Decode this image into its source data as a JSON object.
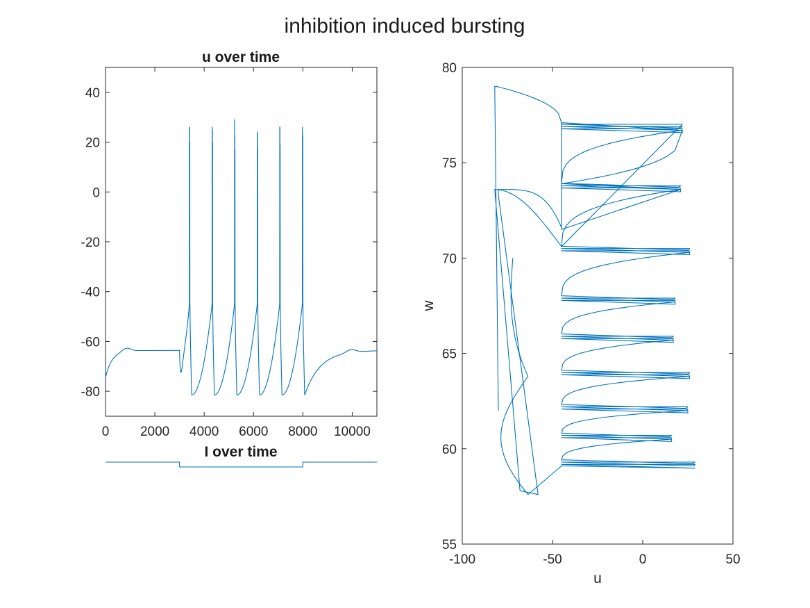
{
  "figure": {
    "title": "inhibition induced bursting",
    "line_color": "#0072BD"
  },
  "chart_data": [
    {
      "id": "u_time",
      "type": "line",
      "title": "u over time",
      "xlabel": "",
      "ylabel": "",
      "xlim": [
        0,
        11000
      ],
      "ylim": [
        -90,
        50
      ],
      "xticks": [
        0,
        2000,
        4000,
        6000,
        8000,
        10000
      ],
      "yticks": [
        -80,
        -60,
        -40,
        -20,
        0,
        20,
        40
      ],
      "grid": false,
      "resting_potential": -63.6,
      "initial_potential": -74.5,
      "stimulus_start": 3000,
      "stimulus_end": 8000,
      "spike_reset": -45,
      "after_spike_minimum": -81.5,
      "bursts": [
        {
          "t": 3400,
          "peaks": [
            26,
            26,
            20
          ]
        },
        {
          "t": 4320,
          "peaks": [
            26,
            25,
            20
          ]
        },
        {
          "t": 5230,
          "peaks": [
            29,
            23,
            17
          ]
        },
        {
          "t": 6150,
          "peaks": [
            24,
            24,
            18
          ]
        },
        {
          "t": 7060,
          "peaks": [
            26,
            26,
            19
          ]
        },
        {
          "t": 7980,
          "peaks": [
            26,
            24,
            22
          ]
        }
      ]
    },
    {
      "id": "I_time",
      "type": "line",
      "title": "I over time",
      "xlabel": "",
      "ylabel": "",
      "xlim": [
        0,
        11000
      ],
      "axis_visible": false,
      "baseline": 1,
      "step_value": 0,
      "step_start": 3000,
      "step_end": 8000
    },
    {
      "id": "phase",
      "type": "line",
      "title": "",
      "xlabel": "u",
      "ylabel": "w",
      "xlim": [
        -100,
        50
      ],
      "ylim": [
        55,
        80
      ],
      "xticks": [
        -100,
        -50,
        0,
        50
      ],
      "yticks": [
        55,
        60,
        65,
        70,
        75,
        80
      ],
      "grid": false,
      "reset_u": -45,
      "start_point": [
        -72,
        70
      ],
      "rest_point": [
        -63.6,
        63.8
      ],
      "minimum_point": [
        -58,
        57.6
      ],
      "spike_peaks": [
        [
          22,
          76.7
        ],
        [
          21,
          73.6
        ],
        [
          26,
          70.3
        ],
        [
          18,
          67.7
        ],
        [
          17,
          65.7
        ],
        [
          26,
          63.8
        ],
        [
          25,
          62.0
        ],
        [
          16,
          60.5
        ],
        [
          29,
          59.1
        ]
      ]
    }
  ]
}
